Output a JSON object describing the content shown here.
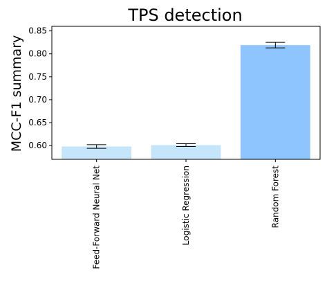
{
  "chart_data": {
    "type": "bar",
    "title": "TPS detection",
    "xlabel": "",
    "ylabel": "MCC-F1 summary",
    "categories": [
      "Feed-Forward Neural Net",
      "Logistic Regression",
      "Random Forest"
    ],
    "values": [
      0.598,
      0.601,
      0.819
    ],
    "errors": [
      0.004,
      0.003,
      0.006
    ],
    "bar_colors": [
      "#c5e6fa",
      "#c5e6fa",
      "#8ec5ff"
    ],
    "ylim": [
      0.57,
      0.86
    ],
    "yticks": [
      0.6,
      0.65,
      0.7,
      0.75,
      0.8,
      0.85
    ],
    "ytick_labels": [
      "0.60",
      "0.65",
      "0.70",
      "0.75",
      "0.80",
      "0.85"
    ],
    "grid": false,
    "legend": "none"
  }
}
